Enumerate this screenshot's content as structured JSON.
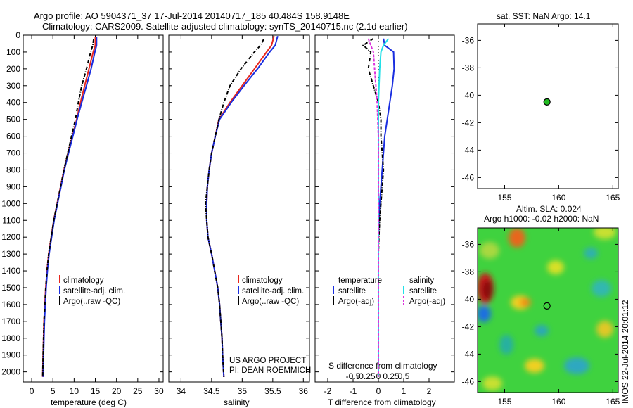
{
  "header": {
    "line1": "Argo profile: AO 5904371_37 17-Jul-2014 20140717_185 40.484S 158.9148E",
    "line2": "Climatology: CARS2009. Satellite-adjusted climatology: synTS_20140715.nc (2.1d earlier)"
  },
  "colors": {
    "climatology": "#e8261c",
    "satellite": "#1a2ee0",
    "argo": "#000000",
    "sat_salinity": "#22e0e8",
    "argo_adj_salinity": "#dd33dd",
    "float_marker": "#22bb22"
  },
  "chart_data": [
    {
      "type": "line",
      "panel": "temperature",
      "xlabel": "temperature (deg C)",
      "ylabel": "",
      "xlim": [
        -2,
        31
      ],
      "ylim": [
        2060,
        0
      ],
      "xticks": [
        0,
        5,
        10,
        15,
        20,
        25,
        30
      ],
      "yticks": [
        0,
        100,
        200,
        300,
        400,
        500,
        600,
        700,
        800,
        900,
        1000,
        1100,
        1200,
        1300,
        1400,
        1500,
        1600,
        1700,
        1800,
        1900,
        2000
      ],
      "legend": [
        "climatology",
        "satellite-adj. clim.",
        "Argo(..raw -QC)"
      ],
      "series": [
        {
          "name": "climatology",
          "x": [
            15.0,
            15.0,
            14.5,
            13.5,
            12.5,
            11.5,
            10.6,
            9.6,
            8.6,
            7.6,
            6.8,
            6.0,
            5.2,
            4.6,
            4.0,
            3.6,
            3.3,
            3.1,
            2.9,
            2.8,
            2.7,
            2.6
          ],
          "y": [
            10,
            60,
            100,
            200,
            300,
            400,
            500,
            600,
            700,
            800,
            900,
            1000,
            1100,
            1200,
            1300,
            1400,
            1500,
            1600,
            1700,
            1800,
            1900,
            2030
          ]
        },
        {
          "name": "satellite-adj. clim.",
          "x": [
            15.3,
            15.3,
            14.9,
            14.0,
            12.9,
            11.8,
            10.7,
            9.7,
            8.7,
            7.7,
            6.9,
            6.1,
            5.3,
            4.7,
            4.1,
            3.7,
            3.4,
            3.2,
            3.0,
            2.9,
            2.8,
            2.7
          ],
          "y": [
            10,
            60,
            100,
            200,
            300,
            400,
            500,
            600,
            700,
            800,
            900,
            1000,
            1100,
            1200,
            1300,
            1400,
            1500,
            1600,
            1700,
            1800,
            1900,
            2030
          ]
        },
        {
          "name": "Argo(..raw -QC)",
          "x": [
            14.6,
            14.4,
            13.9,
            12.9,
            11.8,
            11.0,
            10.3,
            9.4,
            8.5,
            7.6,
            6.8,
            6.0,
            5.2,
            4.6,
            4.0,
            3.6,
            3.3,
            3.1,
            2.9,
            2.8,
            2.7,
            2.6
          ],
          "y": [
            25,
            60,
            100,
            200,
            300,
            400,
            500,
            600,
            700,
            800,
            900,
            1000,
            1100,
            1200,
            1300,
            1400,
            1500,
            1600,
            1700,
            1800,
            1900,
            2030
          ]
        }
      ]
    },
    {
      "type": "line",
      "panel": "salinity",
      "xlabel": "salinity",
      "ylabel": "",
      "xlim": [
        33.8,
        36.1
      ],
      "ylim": [
        2060,
        0
      ],
      "xticks": [
        34,
        34.5,
        35,
        35.5,
        36
      ],
      "xticklabels": [
        "34",
        "34.5",
        "35",
        "35.5",
        "36"
      ],
      "legend": [
        "climatology",
        "satellite-adj. clim.",
        "Argo(..raw -QC)"
      ],
      "annotation": [
        "US ARGO PROJECT",
        "PI: DEAN ROEMMICH"
      ],
      "series": [
        {
          "name": "climatology",
          "x": [
            35.52,
            35.48,
            35.4,
            35.2,
            35.0,
            34.8,
            34.62,
            34.56,
            34.5,
            34.46,
            34.43,
            34.42,
            34.42,
            34.44,
            34.5,
            34.55,
            34.6,
            34.63,
            34.65,
            34.67,
            34.68,
            34.7
          ],
          "y": [
            5,
            60,
            100,
            200,
            300,
            400,
            500,
            600,
            700,
            800,
            900,
            1000,
            1100,
            1200,
            1300,
            1400,
            1500,
            1600,
            1700,
            1800,
            1900,
            2030
          ]
        },
        {
          "name": "satellite-adj. clim.",
          "x": [
            35.58,
            35.54,
            35.45,
            35.25,
            35.03,
            34.82,
            34.63,
            34.56,
            34.5,
            34.46,
            34.43,
            34.42,
            34.42,
            34.44,
            34.5,
            34.55,
            34.6,
            34.63,
            34.65,
            34.67,
            34.68,
            34.7
          ],
          "y": [
            5,
            60,
            100,
            200,
            300,
            400,
            500,
            600,
            700,
            800,
            900,
            1000,
            1100,
            1200,
            1300,
            1400,
            1500,
            1600,
            1700,
            1800,
            1900,
            2030
          ]
        },
        {
          "name": "Argo(..raw -QC)",
          "x": [
            35.35,
            35.3,
            35.2,
            34.98,
            34.8,
            34.7,
            34.62,
            34.56,
            34.5,
            34.46,
            34.43,
            34.4,
            34.42,
            34.44,
            34.5,
            34.55,
            34.6,
            34.63,
            34.65,
            34.67,
            34.68,
            34.7
          ],
          "y": [
            25,
            60,
            100,
            200,
            300,
            400,
            500,
            600,
            700,
            800,
            900,
            1000,
            1100,
            1200,
            1300,
            1400,
            1500,
            1600,
            1700,
            1800,
            1900,
            2030
          ]
        }
      ]
    },
    {
      "type": "line",
      "panel": "difference",
      "xlabel": "T difference from climatology",
      "xlabel_top": "S difference from climatology",
      "xlim": [
        -2.5,
        3.0
      ],
      "ylim": [
        2060,
        0
      ],
      "xticks": [
        -2,
        -1,
        0,
        1,
        2
      ],
      "xticks_top": [
        -1,
        -0.5,
        0,
        0.5,
        1
      ],
      "xticklabels_top": [
        "-0.5",
        "-0.25",
        "0",
        "0.25",
        "0.5"
      ],
      "legend": [
        "temperature",
        "satellite",
        "Argo(-adj)",
        "salinity",
        "satellite",
        "Argo(-adj)"
      ],
      "series": [
        {
          "name": "satellite",
          "x": [
            0.2,
            0.25,
            0.6,
            0.62,
            0.55,
            0.45,
            0.35,
            0.25,
            0.2,
            0.15,
            0.1,
            0.05,
            0.02,
            0.0,
            0.0,
            0.0,
            0.0,
            0.0,
            0.0
          ],
          "y": [
            20,
            60,
            100,
            200,
            300,
            400,
            500,
            600,
            700,
            800,
            900,
            1000,
            1100,
            1200,
            1300,
            1400,
            1600,
            1800,
            2030
          ]
        },
        {
          "name": "Argo(-adj)",
          "x": [
            -0.2,
            -0.6,
            -0.3,
            -0.4,
            -0.2,
            0.0,
            0.1,
            0.1,
            0.15,
            0.2,
            0.15,
            0.1,
            0.05,
            0.02,
            0.0,
            0.0,
            0.0,
            0.0,
            0.0
          ],
          "y": [
            20,
            60,
            100,
            200,
            300,
            400,
            500,
            600,
            700,
            800,
            900,
            1000,
            1100,
            1200,
            1300,
            1400,
            1600,
            1800,
            2030
          ]
        },
        {
          "name": "satellite",
          "x": [
            0.4,
            0.2,
            0.1,
            0.05,
            0.0,
            0.0,
            0.0,
            0.0,
            0.0,
            0.0,
            0.0,
            0.0,
            0.0,
            0.0
          ],
          "y": [
            20,
            60,
            100,
            200,
            400,
            600,
            800,
            1000,
            1200,
            1400,
            1600,
            1800,
            1900,
            2030
          ]
        },
        {
          "name": "Argo(-adj)",
          "x": [
            -0.4,
            -0.3,
            -0.2,
            -0.15,
            -0.05,
            0.0,
            0.0,
            0.0,
            0.0,
            0.0,
            0.0,
            0.0,
            0.0,
            0.0
          ],
          "y": [
            20,
            60,
            100,
            200,
            400,
            600,
            800,
            1000,
            1200,
            1400,
            1600,
            1800,
            1900,
            2030
          ]
        }
      ]
    },
    {
      "type": "scatter",
      "panel": "sst_map",
      "title": "sat. SST: NaN Argo: 14.1",
      "xlim": [
        152.5,
        165.5
      ],
      "ylim": [
        -46.8,
        -34.8
      ],
      "xticks": [
        155,
        160,
        165
      ],
      "yticks": [
        -36,
        -38,
        -40,
        -42,
        -44,
        -46
      ],
      "points": [
        {
          "x": 158.9148,
          "y": -40.484
        }
      ]
    },
    {
      "type": "heatmap",
      "panel": "sla_map",
      "title_lines": [
        "Altim. SLA: 0.024",
        "Argo h1000: -0.02 h2000: NaN"
      ],
      "xlim": [
        152.5,
        165.5
      ],
      "ylim": [
        -46.8,
        -34.8
      ],
      "xticks": [
        155,
        160,
        165
      ],
      "yticks": [
        -36,
        -38,
        -40,
        -42,
        -44,
        -46
      ],
      "points": [
        {
          "x": 158.9148,
          "y": -40.484
        }
      ]
    }
  ],
  "footer": {
    "timestamp": "IMOS 22-Jul-2014 20:01:12"
  }
}
